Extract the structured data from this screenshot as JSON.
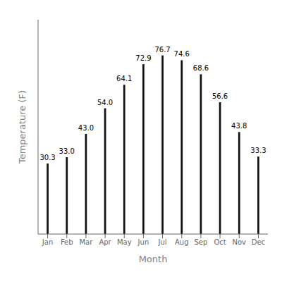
{
  "chart_data": {
    "type": "bar",
    "categories": [
      "Jan",
      "Feb",
      "Mar",
      "Apr",
      "May",
      "Jun",
      "Jul",
      "Aug",
      "Sep",
      "Oct",
      "Nov",
      "Dec"
    ],
    "values": [
      30.3,
      33.0,
      43.0,
      54.0,
      64.1,
      72.9,
      76.7,
      74.6,
      68.6,
      56.6,
      43.8,
      33.3
    ],
    "value_labels": [
      "30.3",
      "33.0",
      "43.0",
      "54.0",
      "64.1",
      "72.9",
      "76.7",
      "74.6",
      "68.6",
      "56.6",
      "43.8",
      "33.3"
    ],
    "data_labels": true,
    "color": "#111111",
    "xlabel": "Month",
    "ylabel": "Temperature (F)",
    "ylim": [
      0,
      92
    ],
    "yticks": [],
    "grid": false,
    "tick_labels": "x"
  }
}
